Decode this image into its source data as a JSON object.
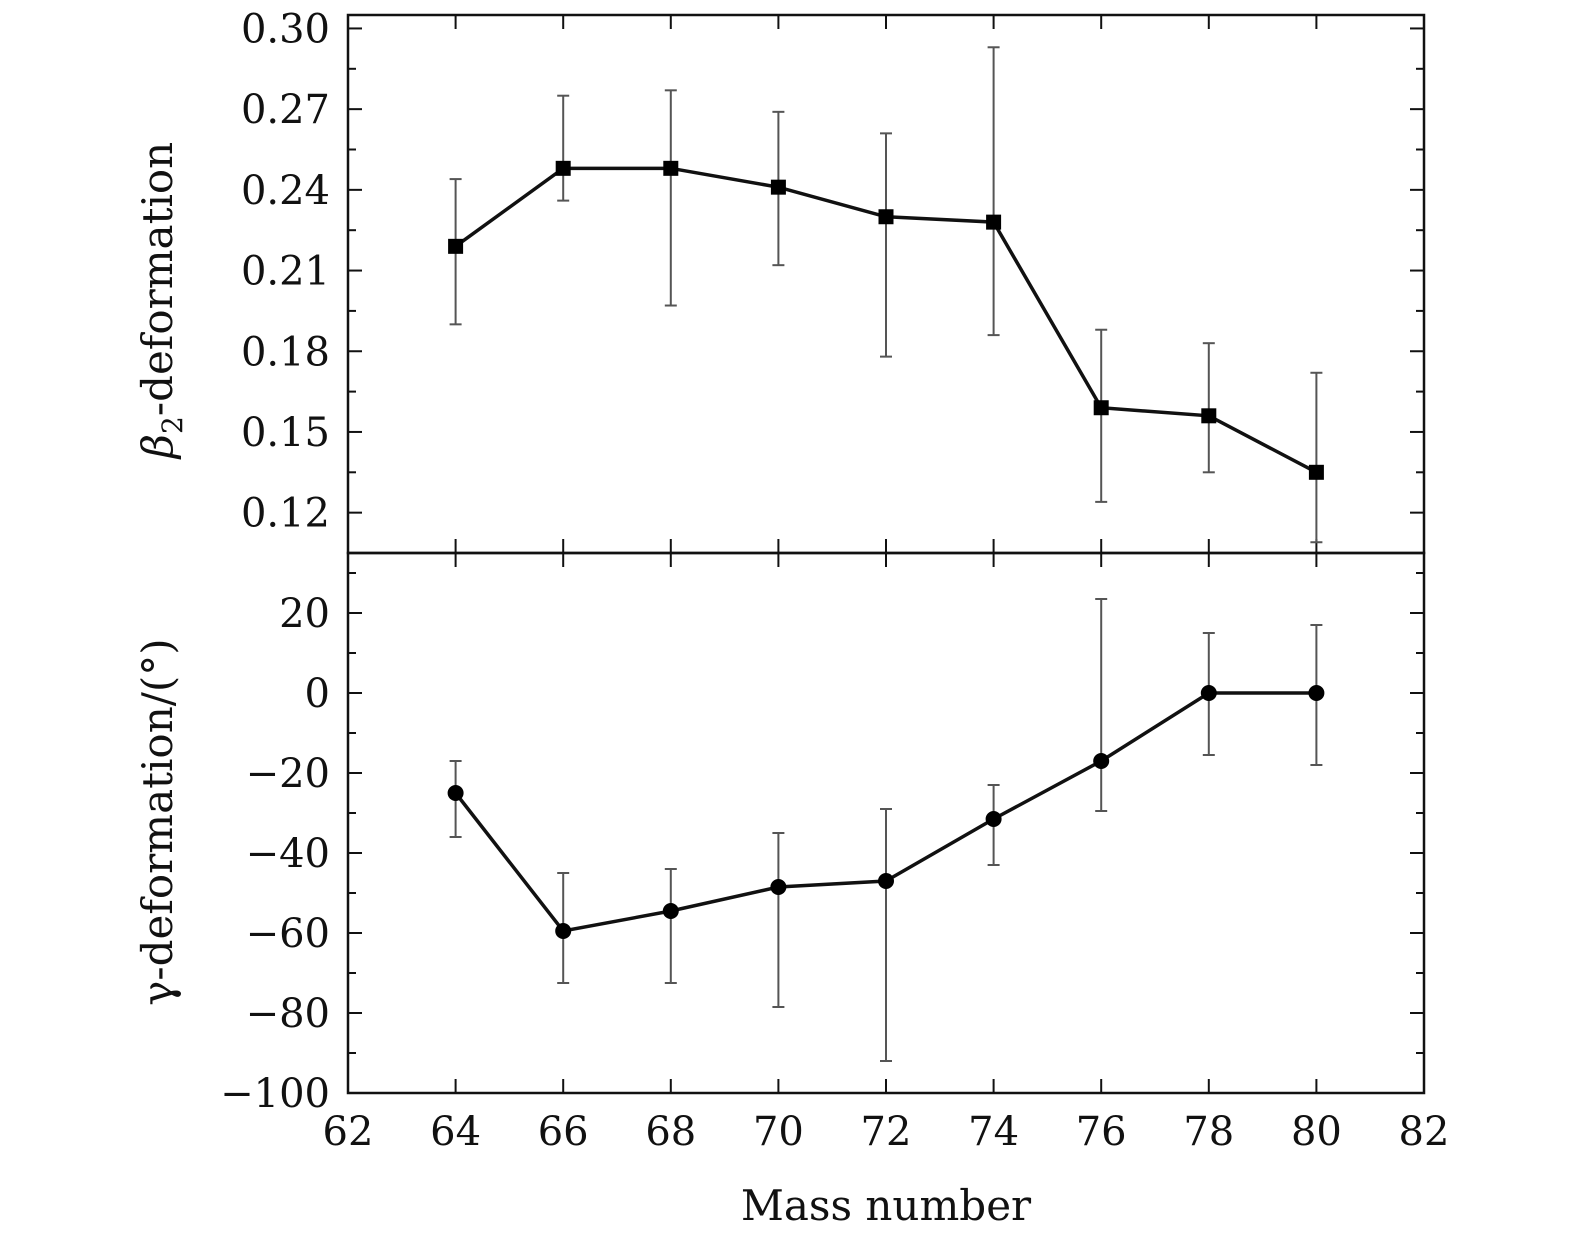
{
  "chart_data": [
    {
      "type": "line",
      "panel": "top",
      "marker": "square",
      "xlabel": "",
      "ylabel_main": "β",
      "ylabel_sub": "2",
      "ylabel_rest": "-deformation",
      "xlim": [
        62,
        82
      ],
      "ylim": [
        0.105,
        0.305
      ],
      "yticks": [
        0.12,
        0.15,
        0.18,
        0.21,
        0.24,
        0.27,
        0.3
      ],
      "ytick_labels": [
        "0.12",
        "0.15",
        "0.18",
        "0.21",
        "0.24",
        "0.27",
        "0.30"
      ],
      "x": [
        64,
        66,
        68,
        70,
        72,
        74,
        76,
        78,
        80
      ],
      "y": [
        0.219,
        0.248,
        0.248,
        0.241,
        0.23,
        0.228,
        0.159,
        0.156,
        0.135
      ],
      "yerr_low": [
        0.19,
        0.236,
        0.197,
        0.212,
        0.178,
        0.186,
        0.124,
        0.135,
        0.109
      ],
      "yerr_high": [
        0.244,
        0.275,
        0.277,
        0.269,
        0.261,
        0.293,
        0.188,
        0.183,
        0.172
      ]
    },
    {
      "type": "line",
      "panel": "bottom",
      "marker": "circle",
      "xlabel": "Mass number",
      "ylabel": "γ-deformation/(°)",
      "xlim": [
        62,
        82
      ],
      "ylim": [
        -100,
        35
      ],
      "xticks": [
        62,
        64,
        66,
        68,
        70,
        72,
        74,
        76,
        78,
        80,
        82
      ],
      "xtick_labels": [
        "62",
        "64",
        "66",
        "68",
        "70",
        "72",
        "74",
        "76",
        "78",
        "80",
        "82"
      ],
      "yticks": [
        -100,
        -80,
        -60,
        -40,
        -20,
        0,
        20
      ],
      "ytick_labels": [
        "−100",
        "−80",
        "−60",
        "−40",
        "−20",
        "0",
        "20"
      ],
      "x": [
        64,
        66,
        68,
        70,
        72,
        74,
        76,
        78,
        80
      ],
      "y": [
        -25,
        -59.5,
        -54.5,
        -48.5,
        -47,
        -31.5,
        -17,
        0,
        0
      ],
      "yerr_low": [
        -36,
        -72.5,
        -72.5,
        -78.5,
        -92,
        -43,
        -29.5,
        -15.5,
        -18
      ],
      "yerr_high": [
        -17,
        -45,
        -44,
        -35,
        -29,
        -23,
        23.5,
        15,
        17
      ]
    }
  ]
}
